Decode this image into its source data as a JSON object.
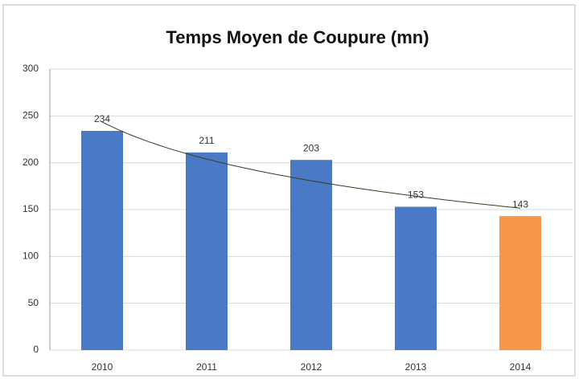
{
  "chart_data": {
    "type": "bar",
    "title": "Temps Moyen de Coupure (mn)",
    "categories": [
      "2010",
      "2011",
      "2012",
      "2013",
      "2014"
    ],
    "values": [
      234,
      211,
      203,
      153,
      143
    ],
    "colors": [
      "#4a7ac6",
      "#4a7ac6",
      "#4a7ac6",
      "#4a7ac6",
      "#f79646"
    ],
    "ylim": [
      0,
      300
    ],
    "yticks": [
      0,
      50,
      100,
      150,
      200,
      250,
      300
    ],
    "grid": true,
    "trendline": "logarithmic",
    "data_labels": true
  }
}
